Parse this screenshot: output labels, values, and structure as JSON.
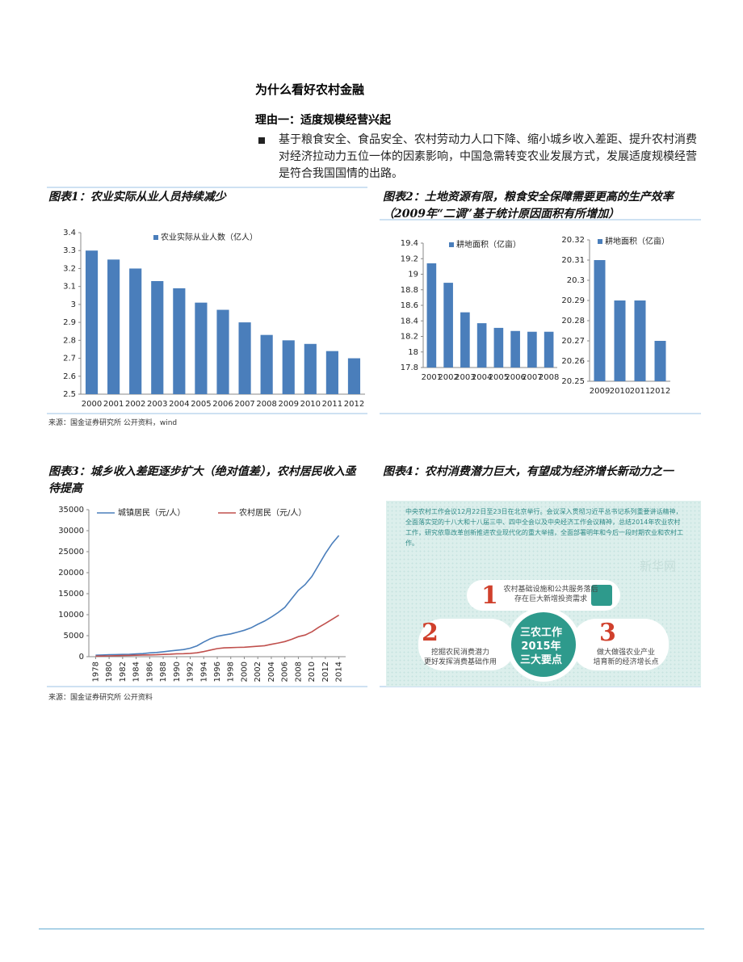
{
  "heading": "为什么看好农村金融",
  "subheading": "理由一：适度规模经营兴起",
  "bullet": "基于粮食安全、食品安全、农村劳动力人口下降、缩小城乡收入差距、提升农村消费对经济拉动力五位一体的因素影响，中国急需转变农业发展方式，发展适度规模经营是符合我国国情的出路。",
  "chart_data": [
    {
      "type": "bar",
      "title": "图表1：农业实际从业人员持续减少",
      "source": "来源：国金证券研究所 公开资料，wind",
      "categories": [
        "2000",
        "2001",
        "2002",
        "2003",
        "2004",
        "2005",
        "2006",
        "2007",
        "2008",
        "2009",
        "2010",
        "2011",
        "2012"
      ],
      "series": [
        {
          "name": "农业实际从业人数（亿人）",
          "color": "#4a7ebb",
          "values": [
            3.3,
            3.25,
            3.2,
            3.13,
            3.09,
            3.01,
            2.97,
            2.9,
            2.83,
            2.8,
            2.78,
            2.74,
            2.7
          ]
        }
      ],
      "ylim": [
        2.5,
        3.4
      ],
      "yticks": [
        2.5,
        2.6,
        2.7,
        2.8,
        2.9,
        3,
        3.1,
        3.2,
        3.3,
        3.4
      ]
    },
    {
      "type": "bar",
      "title": "图表2：土地资源有限，粮食安全保障需要更高的生产效率（2009年“二调”基于统计原因面积有所增加）",
      "categories": [
        "2001",
        "2002",
        "2003",
        "2004",
        "2005",
        "2006",
        "2007",
        "2008"
      ],
      "series": [
        {
          "name": "耕地面积（亿亩）",
          "color": "#4a7ebb",
          "values": [
            19.14,
            18.89,
            18.51,
            18.37,
            18.31,
            18.27,
            18.26,
            18.26
          ]
        }
      ],
      "ylim": [
        17.8,
        19.4
      ],
      "yticks": [
        17.8,
        18,
        18.2,
        18.4,
        18.6,
        18.8,
        19,
        19.2,
        19.4
      ]
    },
    {
      "type": "bar",
      "categories": [
        "2009",
        "2010",
        "2011",
        "2012"
      ],
      "series": [
        {
          "name": "耕地面积（亿亩）",
          "color": "#4a7ebb",
          "values": [
            20.31,
            20.29,
            20.29,
            20.27
          ]
        }
      ],
      "ylim": [
        20.25,
        20.32
      ],
      "yticks": [
        20.25,
        20.26,
        20.27,
        20.28,
        20.29,
        20.3,
        20.31,
        20.32
      ]
    },
    {
      "type": "line",
      "title": "图表3：城乡收入差距逐步扩大（绝对值差），农村居民收入亟待提高",
      "source": "来源：国金证券研究所 公开资料",
      "x": [
        1978,
        1979,
        1980,
        1981,
        1982,
        1983,
        1984,
        1985,
        1986,
        1987,
        1988,
        1989,
        1990,
        1991,
        1992,
        1993,
        1994,
        1995,
        1996,
        1997,
        1998,
        1999,
        2000,
        2001,
        2002,
        2003,
        2004,
        2005,
        2006,
        2007,
        2008,
        2009,
        2010,
        2011,
        2012,
        2013,
        2014
      ],
      "series": [
        {
          "name": "城镇居民（元/人）",
          "color": "#4a7ebb",
          "values": [
            343,
            405,
            478,
            500,
            535,
            565,
            652,
            739,
            900,
            1002,
            1180,
            1374,
            1510,
            1701,
            2027,
            2577,
            3496,
            4283,
            4839,
            5160,
            5425,
            5854,
            6280,
            6860,
            7703,
            8472,
            9422,
            10493,
            11759,
            13786,
            15781,
            17175,
            19109,
            21810,
            24565,
            26955,
            28844
          ]
        },
        {
          "name": "农村居民（元/人）",
          "color": "#c0504d",
          "values": [
            134,
            160,
            191,
            223,
            270,
            310,
            355,
            398,
            424,
            463,
            545,
            602,
            686,
            709,
            784,
            922,
            1221,
            1578,
            1926,
            2090,
            2162,
            2210,
            2253,
            2366,
            2476,
            2622,
            2936,
            3255,
            3587,
            4140,
            4761,
            5153,
            5919,
            6977,
            7917,
            8896,
            9892
          ]
        }
      ],
      "xlim": [
        1977,
        2015
      ],
      "xticks": [
        1978,
        1980,
        1982,
        1984,
        1986,
        1988,
        1990,
        1992,
        1994,
        1996,
        1998,
        2000,
        2002,
        2004,
        2006,
        2008,
        2010,
        2012,
        2014
      ],
      "ylim": [
        0,
        35000
      ],
      "yticks": [
        0,
        5000,
        10000,
        15000,
        20000,
        25000,
        30000,
        35000
      ]
    }
  ],
  "figure4": {
    "title": "图表4：农村消费潜力巨大，有望成为经济增长新动力之一",
    "text": "中央农村工作会议12月22日至23日在北京举行。会议深入贯彻习近平总书记系列重要讲话精神，全面落实党的十八大和十八届三中、四中全会以及中央经济工作会议精神，总结2014年农业农村工作，研究依靠改革创新推进农业现代化的重大举措，全面部署明年和今后一段时期农业和农村工作。",
    "watermark": "新华网",
    "center": [
      "三农工作",
      "2015年",
      "三大要点"
    ],
    "items": [
      {
        "number": "1",
        "lines": [
          "农村基础设施和公共服务落后",
          "存在巨大新增投资需求"
        ]
      },
      {
        "number": "2",
        "lines": [
          "挖掘农民消费潜力",
          "更好发挥消费基础作用"
        ]
      },
      {
        "number": "3",
        "lines": [
          "做大做强农业产业",
          "培育新的经济增长点"
        ]
      }
    ]
  }
}
